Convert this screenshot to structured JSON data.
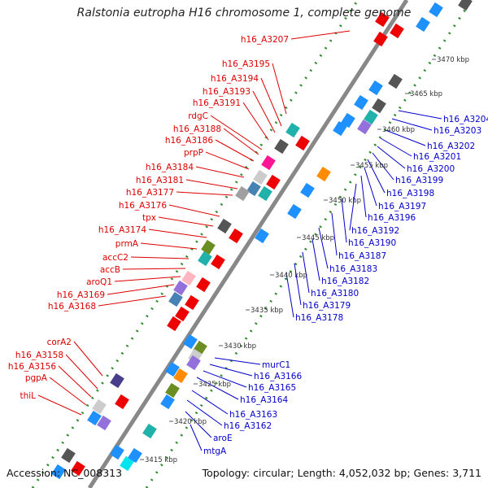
{
  "title": "Ralstonia eutropha H16 chromosome 1, complete genome",
  "accession": "Accession: NC_008313",
  "topology": "Topology: circular; Length: 4,052,032 bp; Genes: 3,711",
  "colors": {
    "forward_label": "#dd0000",
    "reverse_label": "#0000cc",
    "backbone": "#888888",
    "dots": "#2e8b2e"
  },
  "scale_ticks": [
    {
      "label": "3415 kbp",
      "kbp": 3415
    },
    {
      "label": "3420 kbp",
      "kbp": 3420
    },
    {
      "label": "3425 kbp",
      "kbp": 3425
    },
    {
      "label": "3430 kbp",
      "kbp": 3430
    },
    {
      "label": "3435 kbp",
      "kbp": 3435
    },
    {
      "label": "3440 kbp",
      "kbp": 3440
    },
    {
      "label": "3445 kbp",
      "kbp": 3445
    },
    {
      "label": "3450 kbp",
      "kbp": 3450
    },
    {
      "label": "3455 kbp",
      "kbp": 3455
    },
    {
      "label": "3460 kbp",
      "kbp": 3460
    },
    {
      "label": "3465 kbp",
      "kbp": 3465
    },
    {
      "label": "3470 kbp",
      "kbp": 3470
    }
  ],
  "forward_labels": [
    "h16_A3207",
    "h16_A3195",
    "h16_A3194",
    "h16_A3193",
    "h16_A3191",
    "rdgC",
    "h16_A3188",
    "h16_A3186",
    "prpP",
    "h16_A3184",
    "h16_A3181",
    "h16_A3177",
    "h16_A3176",
    "tpx",
    "h16_A3174",
    "prmA",
    "accC2",
    "accB",
    "aroQ1",
    "h16_A3169",
    "h16_A3168",
    "corA2",
    "h16_A3158",
    "h16_A3156",
    "pgpA",
    "thiL"
  ],
  "reverse_labels": [
    "h16_A3204",
    "h16_A3203",
    "h16_A3202",
    "h16_A3201",
    "h16_A3200",
    "h16_A3199",
    "h16_A3198",
    "h16_A3197",
    "h16_A3196",
    "h16_A3192",
    "h16_A3190",
    "h16_A3187",
    "h16_A3183",
    "h16_A3182",
    "h16_A3180",
    "h16_A3179",
    "h16_A3178",
    "murC1",
    "h16_A3166",
    "h16_A3165",
    "h16_A3164",
    "h16_A3163",
    "h16_A3162",
    "aroE",
    "mtgA"
  ]
}
